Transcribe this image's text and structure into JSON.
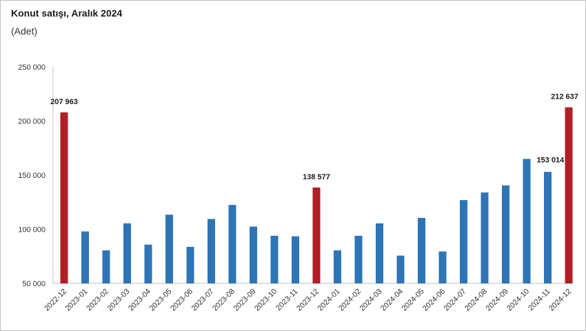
{
  "chart_data": {
    "type": "bar",
    "title": "Konut satışı, Aralık 2024",
    "subtitle": "(Adet)",
    "xlabel": "",
    "ylabel": "",
    "ylim": [
      50000,
      250000
    ],
    "yticks": [
      50000,
      100000,
      150000,
      200000,
      250000
    ],
    "ytick_labels": [
      "50 000",
      "100 000",
      "150 000",
      "200 000",
      "250 000"
    ],
    "grid": false,
    "legend": "none",
    "categories": [
      "2022-12",
      "2023-01",
      "2023-02",
      "2023-03",
      "2023-04",
      "2023-05",
      "2023-06",
      "2023-07",
      "2023-08",
      "2023-09",
      "2023-10",
      "2023-11",
      "2023-12",
      "2024-01",
      "2024-02",
      "2024-03",
      "2024-04",
      "2024-05",
      "2024-06",
      "2024-07",
      "2024-08",
      "2024-09",
      "2024-10",
      "2024-11",
      "2024-12"
    ],
    "values": [
      207963,
      98000,
      80500,
      105500,
      85800,
      113500,
      83800,
      109500,
      122500,
      102500,
      94000,
      93500,
      138577,
      80500,
      94000,
      105500,
      75700,
      110500,
      79500,
      127000,
      134000,
      140500,
      165000,
      153014,
      212637
    ],
    "highlight": [
      0,
      12,
      24
    ],
    "data_labels": [
      {
        "index": 0,
        "text": "207 963"
      },
      {
        "index": 12,
        "text": "138 577"
      },
      {
        "index": 23,
        "text": "153 014"
      },
      {
        "index": 24,
        "text": "212 637"
      }
    ],
    "colors": {
      "default": "#2e75b6",
      "highlight": "#b01f24",
      "axis": "#bfbfbf"
    }
  }
}
